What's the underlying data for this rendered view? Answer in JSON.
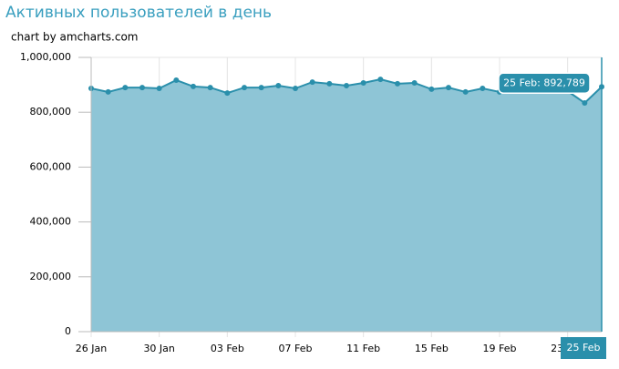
{
  "chart_data": {
    "type": "area",
    "title": "Активных пользователей в день",
    "credit": "chart by amcharts.com",
    "categories": [
      "26 Jan",
      null,
      null,
      null,
      "30 Jan",
      null,
      null,
      null,
      "03 Feb",
      null,
      null,
      null,
      "07 Feb",
      null,
      null,
      null,
      "11 Feb",
      null,
      null,
      null,
      "15 Feb",
      null,
      null,
      null,
      "19 Feb",
      null,
      null,
      null,
      "23 Feb",
      null,
      "25 Feb"
    ],
    "series": [
      {
        "name": "Активных пользователей",
        "color": "#2a8fab",
        "fill": "#8ec5d6",
        "values": [
          887000,
          874000,
          890000,
          890000,
          887000,
          917000,
          894000,
          890000,
          870000,
          890000,
          890000,
          897000,
          887000,
          910000,
          904000,
          897000,
          907000,
          920000,
          904000,
          907000,
          884000,
          890000,
          874000,
          887000,
          874000,
          877000,
          877000,
          877000,
          877000,
          834000,
          892789
        ]
      }
    ],
    "tooltip": "25 Feb: 892,789",
    "ylim": [
      0,
      1000000
    ],
    "yticks": [
      0,
      {
        "value": 200000,
        "label": "200,000"
      },
      {
        "value": 400000,
        "label": "400,000"
      },
      {
        "value": 600000,
        "label": "600,000"
      },
      {
        "value": 800000,
        "label": "800,000"
      },
      {
        "value": 1000000,
        "label": "1,000,000"
      }
    ],
    "grid": true
  }
}
